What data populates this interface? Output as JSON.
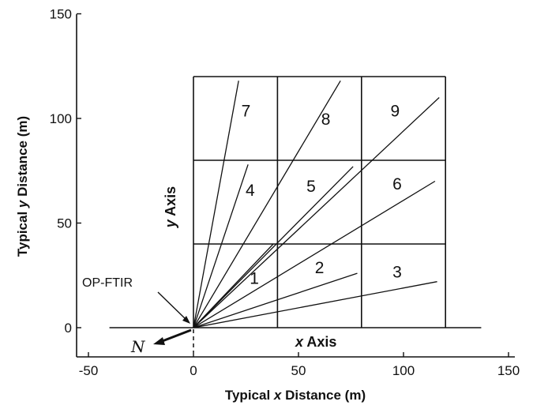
{
  "x_axis": {
    "title_prefix": "Typical ",
    "title_var": "x",
    "title_suffix": " Distance (m)",
    "ticks": [
      -50,
      0,
      50,
      100,
      150
    ],
    "range": [
      -50,
      150
    ]
  },
  "y_axis": {
    "title_prefix": "Typical ",
    "title_var": "y",
    "title_suffix": " Distance (m)",
    "ticks": [
      0,
      50,
      100,
      150
    ],
    "range": [
      -12,
      150
    ]
  },
  "grid": {
    "x_lines": [
      0,
      40,
      80,
      120
    ],
    "y_lines": [
      0,
      40,
      80,
      120
    ],
    "x_range": [
      0,
      120
    ],
    "y_range": [
      0,
      120
    ]
  },
  "baseline": {
    "from": -40,
    "to": 137
  },
  "cells": [
    {
      "label": "1",
      "x": 29,
      "y": 21
    },
    {
      "label": "2",
      "x": 60,
      "y": 26
    },
    {
      "label": "3",
      "x": 97,
      "y": 24
    },
    {
      "label": "4",
      "x": 27,
      "y": 63
    },
    {
      "label": "5",
      "x": 56,
      "y": 65
    },
    {
      "label": "6",
      "x": 97,
      "y": 66
    },
    {
      "label": "7",
      "x": 25,
      "y": 101
    },
    {
      "label": "8",
      "x": 63,
      "y": 97
    },
    {
      "label": "9",
      "x": 96,
      "y": 101
    }
  ],
  "beams": [
    {
      "x": 21.5,
      "y": 118
    },
    {
      "x": 70,
      "y": 118
    },
    {
      "x": 117,
      "y": 110
    },
    {
      "x": 26,
      "y": 78
    },
    {
      "x": 76,
      "y": 77
    },
    {
      "x": 115,
      "y": 70
    },
    {
      "x": 38,
      "y": 40
    },
    {
      "x": 78,
      "y": 26
    },
    {
      "x": 116,
      "y": 22
    }
  ],
  "labels": {
    "op_ftir": "OP-FTIR",
    "x_axis_var": "x",
    "x_axis_word": " Axis",
    "y_axis_var": "y",
    "y_axis_word": " Axis",
    "north": "N"
  },
  "colors": {
    "ink": "#111111",
    "background": "#ffffff"
  }
}
